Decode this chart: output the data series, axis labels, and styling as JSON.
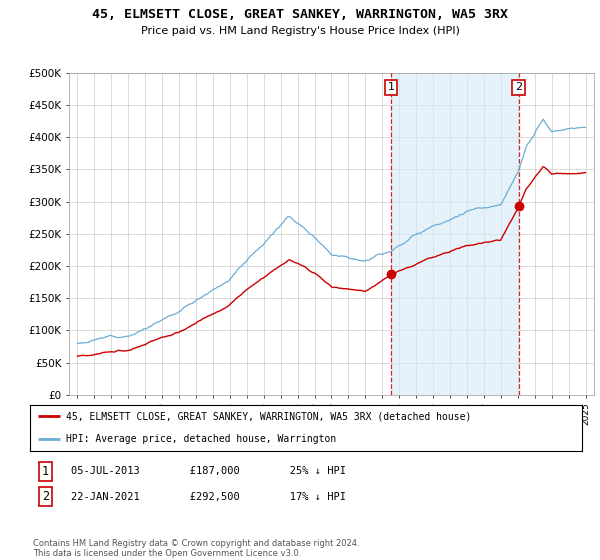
{
  "title": "45, ELMSETT CLOSE, GREAT SANKEY, WARRINGTON, WA5 3RX",
  "subtitle": "Price paid vs. HM Land Registry's House Price Index (HPI)",
  "ylim": [
    0,
    500000
  ],
  "yticks": [
    0,
    50000,
    100000,
    150000,
    200000,
    250000,
    300000,
    350000,
    400000,
    450000,
    500000
  ],
  "ytick_labels": [
    "£0",
    "£50K",
    "£100K",
    "£150K",
    "£200K",
    "£250K",
    "£300K",
    "£350K",
    "£400K",
    "£450K",
    "£500K"
  ],
  "xmin": 1994.5,
  "xmax": 2025.5,
  "sale1_date": 2013.51,
  "sale1_price": 187000,
  "sale2_date": 2021.06,
  "sale2_price": 292500,
  "legend_line1": "45, ELMSETT CLOSE, GREAT SANKEY, WARRINGTON, WA5 3RX (detached house)",
  "legend_line2": "HPI: Average price, detached house, Warrington",
  "annotation1_text": "05-JUL-2013        £187,000        25% ↓ HPI",
  "annotation2_text": "22-JAN-2021        £292,500        17% ↓ HPI",
  "footer": "Contains HM Land Registry data © Crown copyright and database right 2024.\nThis data is licensed under the Open Government Licence v3.0.",
  "hpi_color": "#6baed6",
  "hpi_fill_color": "#d6eaf8",
  "price_color": "#cc0000",
  "vline_color": "#cc0000",
  "background_color": "#ffffff",
  "grid_color": "#cccccc",
  "title_fontsize": 9.5,
  "subtitle_fontsize": 8
}
